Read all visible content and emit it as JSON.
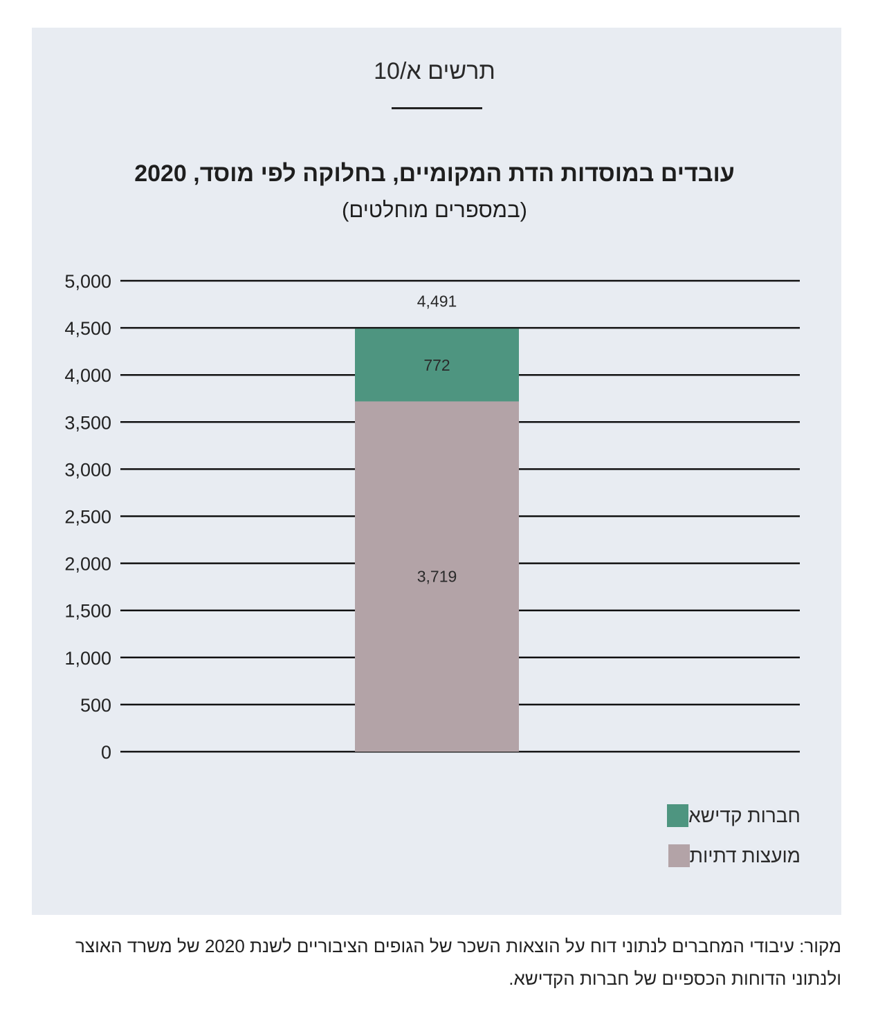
{
  "figure_label": "תרשים א/10",
  "source": "מקור: עיבודי המחברים לנתוני דוח על הוצאות השכר של הגופים הציבוריים לשנת 2020 של משרד האוצר ולנתוני הדוחות הכספיים של חברות הקדישא.",
  "colors": {
    "panel_bg": "#e8ecf2",
    "green": "#4e9580",
    "mauve": "#b3a3a7",
    "grid": "#111111"
  },
  "chart_data": {
    "type": "bar",
    "stacked": true,
    "title": "עובדים במוסדות הדת המקומיים, בחלוקה לפי מוסד, 2020",
    "subtitle": "(במספרים מוחלטים)",
    "categories": [
      ""
    ],
    "series": [
      {
        "name": "מועצות דתיות",
        "values": [
          3719
        ],
        "labels": [
          "3,719"
        ],
        "color": "#b3a3a7"
      },
      {
        "name": "חברות קדישא",
        "values": [
          772
        ],
        "labels": [
          "772"
        ],
        "color": "#4e9580"
      }
    ],
    "total_label": "4,491",
    "ylim": [
      0,
      5000
    ],
    "yticks": [
      0,
      500,
      1000,
      1500,
      2000,
      2500,
      3000,
      3500,
      4000,
      4500,
      5000
    ],
    "ytick_labels": [
      "0",
      "500",
      "1,000",
      "1,500",
      "2,000",
      "2,500",
      "3,000",
      "3,500",
      "4,000",
      "4,500",
      "5,000"
    ],
    "grid": true,
    "legend_position": "bottom-right",
    "legend": [
      {
        "label": "חברות קדישא",
        "color": "#4e9580"
      },
      {
        "label": "מועצות דתיות",
        "color": "#b3a3a7"
      }
    ]
  }
}
